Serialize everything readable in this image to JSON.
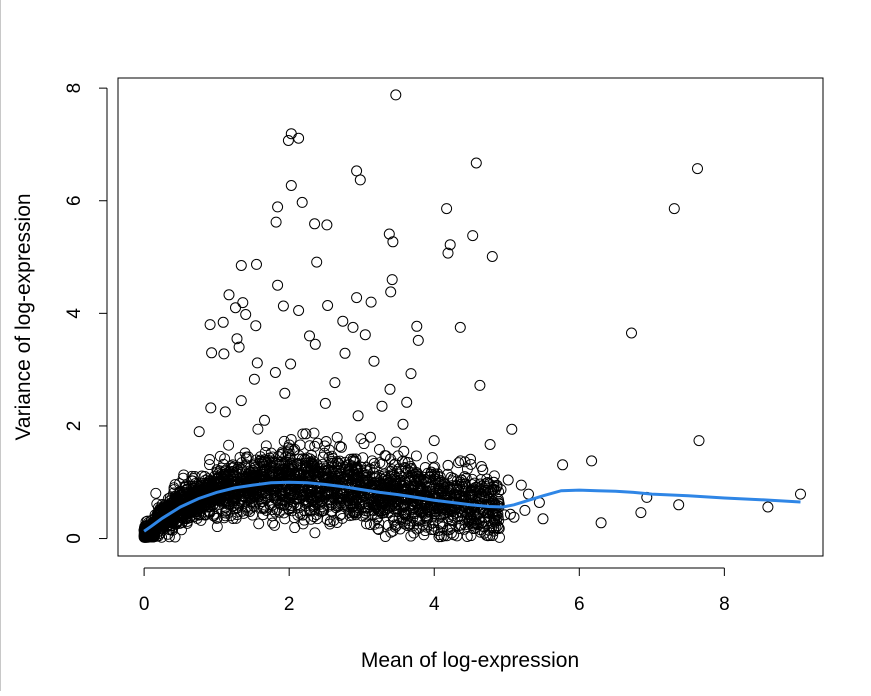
{
  "chart_data": {
    "type": "scatter",
    "title": "",
    "xlabel": "Mean of log-expression",
    "ylabel": "Variance of log-expression",
    "xlim": [
      -0.36,
      9.36
    ],
    "ylim": [
      -0.31,
      8.18
    ],
    "x_ticks": [
      0,
      2,
      4,
      6,
      8
    ],
    "y_ticks": [
      0,
      2,
      4,
      6,
      8
    ],
    "x_tick_labels": [
      "0",
      "2",
      "4",
      "6",
      "8"
    ],
    "y_tick_labels": [
      "0",
      "2",
      "4",
      "6",
      "8"
    ],
    "grid": false,
    "legend": "none",
    "point_style": "open-circle",
    "point_color": "#000000",
    "trend_color": "#2f86e6",
    "cloud_note": "dense cloud of several thousand points between x 0 and 5, variance mostly 0 to 1.5",
    "points": [
      [
        3.47,
        7.88
      ],
      [
        2.03,
        7.19
      ],
      [
        2.13,
        7.11
      ],
      [
        1.99,
        7.07
      ],
      [
        4.58,
        6.67
      ],
      [
        7.63,
        6.57
      ],
      [
        2.93,
        6.53
      ],
      [
        2.98,
        6.37
      ],
      [
        2.03,
        6.27
      ],
      [
        2.18,
        5.97
      ],
      [
        1.84,
        5.89
      ],
      [
        4.17,
        5.86
      ],
      [
        7.31,
        5.86
      ],
      [
        1.82,
        5.62
      ],
      [
        2.35,
        5.59
      ],
      [
        2.52,
        5.57
      ],
      [
        3.38,
        5.41
      ],
      [
        4.53,
        5.38
      ],
      [
        3.43,
        5.27
      ],
      [
        4.22,
        5.22
      ],
      [
        4.19,
        5.07
      ],
      [
        4.8,
        5.01
      ],
      [
        2.38,
        4.91
      ],
      [
        1.34,
        4.85
      ],
      [
        1.55,
        4.87
      ],
      [
        3.42,
        4.6
      ],
      [
        1.84,
        4.5
      ],
      [
        3.4,
        4.38
      ],
      [
        1.17,
        4.33
      ],
      [
        2.93,
        4.28
      ],
      [
        3.13,
        4.2
      ],
      [
        1.36,
        4.19
      ],
      [
        2.53,
        4.14
      ],
      [
        1.92,
        4.13
      ],
      [
        1.26,
        4.1
      ],
      [
        2.13,
        4.05
      ],
      [
        1.4,
        3.98
      ],
      [
        2.74,
        3.86
      ],
      [
        1.09,
        3.84
      ],
      [
        1.54,
        3.78
      ],
      [
        3.76,
        3.77
      ],
      [
        2.88,
        3.75
      ],
      [
        0.91,
        3.8
      ],
      [
        4.36,
        3.75
      ],
      [
        6.72,
        3.65
      ],
      [
        3.05,
        3.62
      ],
      [
        2.28,
        3.6
      ],
      [
        1.28,
        3.55
      ],
      [
        3.78,
        3.52
      ],
      [
        2.36,
        3.45
      ],
      [
        1.31,
        3.4
      ],
      [
        0.93,
        3.3
      ],
      [
        2.77,
        3.29
      ],
      [
        1.1,
        3.28
      ],
      [
        3.17,
        3.15
      ],
      [
        1.56,
        3.12
      ],
      [
        2.02,
        3.1
      ],
      [
        1.81,
        2.95
      ],
      [
        3.68,
        2.93
      ],
      [
        1.52,
        2.83
      ],
      [
        2.63,
        2.77
      ],
      [
        4.63,
        2.72
      ],
      [
        3.39,
        2.65
      ],
      [
        1.94,
        2.58
      ],
      [
        3.62,
        2.42
      ],
      [
        1.34,
        2.45
      ],
      [
        2.5,
        2.4
      ],
      [
        3.28,
        2.35
      ],
      [
        0.92,
        2.32
      ],
      [
        1.12,
        2.25
      ],
      [
        2.95,
        2.18
      ],
      [
        1.66,
        2.1
      ],
      [
        3.57,
        2.03
      ],
      [
        5.07,
        1.94
      ],
      [
        0.76,
        1.9
      ],
      [
        2.23,
        1.86
      ],
      [
        3.12,
        1.8
      ],
      [
        4.0,
        1.74
      ],
      [
        7.65,
        1.74
      ],
      [
        4.77,
        1.67
      ],
      [
        2.72,
        1.62
      ],
      [
        3.58,
        1.55
      ],
      [
        4.5,
        1.41
      ],
      [
        3.64,
        1.35
      ],
      [
        6.17,
        1.38
      ],
      [
        5.77,
        1.31
      ],
      [
        4.19,
        1.3
      ],
      [
        2.99,
        1.27
      ],
      [
        4.67,
        1.22
      ],
      [
        3.96,
        1.18
      ],
      [
        4.42,
        1.1
      ],
      [
        5.02,
        1.04
      ],
      [
        4.82,
        1.0
      ],
      [
        4.35,
        0.92
      ],
      [
        5.2,
        0.95
      ],
      [
        4.92,
        0.87
      ],
      [
        3.82,
        0.85
      ],
      [
        5.3,
        0.79
      ],
      [
        4.05,
        0.77
      ],
      [
        9.05,
        0.79
      ],
      [
        6.93,
        0.73
      ],
      [
        5.45,
        0.64
      ],
      [
        7.37,
        0.6
      ],
      [
        8.6,
        0.56
      ],
      [
        6.85,
        0.46
      ],
      [
        5.25,
        0.5
      ],
      [
        5.05,
        0.43
      ],
      [
        4.97,
        0.42
      ],
      [
        5.1,
        0.38
      ],
      [
        5.5,
        0.35
      ],
      [
        6.3,
        0.28
      ],
      [
        4.75,
        0.45
      ],
      [
        4.52,
        0.52
      ],
      [
        4.3,
        0.55
      ],
      [
        4.1,
        0.6
      ]
    ],
    "trend": {
      "name": "",
      "x": [
        0.0,
        0.1,
        0.25,
        0.5,
        0.75,
        1.0,
        1.25,
        1.5,
        1.75,
        2.0,
        2.25,
        2.5,
        2.75,
        3.0,
        3.25,
        3.5,
        3.75,
        4.0,
        4.25,
        4.5,
        4.75,
        4.95,
        5.1,
        5.3,
        5.5,
        5.75,
        6.0,
        6.25,
        6.5,
        6.75,
        7.0,
        7.5,
        8.0,
        8.5,
        9.05
      ],
      "y": [
        0.13,
        0.22,
        0.36,
        0.56,
        0.71,
        0.82,
        0.9,
        0.95,
        0.99,
        1.0,
        0.99,
        0.96,
        0.92,
        0.87,
        0.82,
        0.78,
        0.73,
        0.68,
        0.64,
        0.6,
        0.57,
        0.56,
        0.6,
        0.68,
        0.76,
        0.85,
        0.86,
        0.85,
        0.84,
        0.82,
        0.79,
        0.76,
        0.72,
        0.69,
        0.65
      ]
    }
  }
}
